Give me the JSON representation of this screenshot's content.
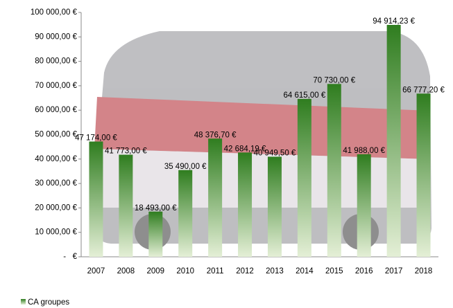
{
  "chart_data": {
    "type": "bar",
    "categories": [
      "2007",
      "2008",
      "2009",
      "2010",
      "2011",
      "2012",
      "2013",
      "2014",
      "2015",
      "2016",
      "2017",
      "2018"
    ],
    "series": [
      {
        "name": "CA groupes",
        "color": "#2f7d1f",
        "values": [
          47174,
          41773,
          18493,
          35490,
          48376.7,
          42684.19,
          40949.5,
          64615,
          70730,
          41988,
          94914.23,
          66777.2
        ],
        "value_labels": [
          "47 174,00 €",
          "41 773,00 €",
          "18 493,00 €",
          "35 490,00 €",
          "48 376,70 €",
          "42 684,19 €",
          "40 949,50 €",
          "64 615,00 €",
          "70 730,00 €",
          "41 988,00 €",
          "94 914,23 €",
          "66 777,20 €"
        ]
      }
    ],
    "ylim": [
      0,
      100000
    ],
    "yticks": [
      {
        "value": 0,
        "label": "-   €"
      },
      {
        "value": 10000,
        "label": "10 000,00 €"
      },
      {
        "value": 20000,
        "label": "20 000,00 €"
      },
      {
        "value": 30000,
        "label": "30 000,00 €"
      },
      {
        "value": 40000,
        "label": "40 000,00 €"
      },
      {
        "value": 50000,
        "label": "50 000,00 €"
      },
      {
        "value": 60000,
        "label": "60 000,00 €"
      },
      {
        "value": 70000,
        "label": "70 000,00 €"
      },
      {
        "value": 80000,
        "label": "80 000,00 €"
      },
      {
        "value": 90000,
        "label": "90 000,00 €"
      },
      {
        "value": 100000,
        "label": "100 000,00 €"
      }
    ],
    "grid": false,
    "legend": "bottom-left"
  }
}
